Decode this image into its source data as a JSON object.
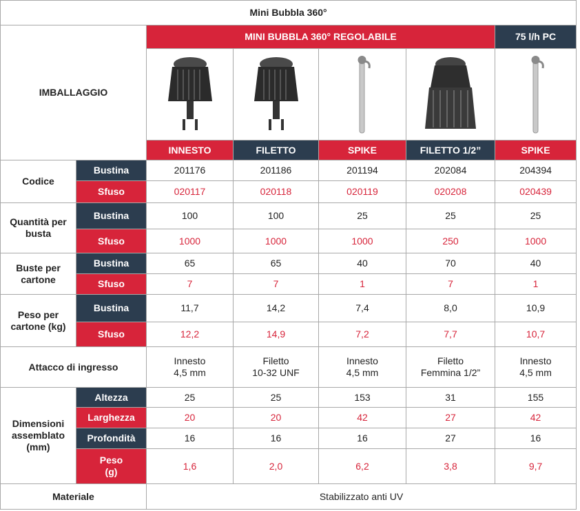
{
  "title": "Mini Bubbla 360°",
  "header": {
    "label": "IMBALLAGGIO",
    "groups": [
      {
        "label": "MINI BUBBLA 360° REGOLABILE",
        "products": [
          "INNESTO",
          "FILETTO",
          "SPIKE",
          "FILETTO 1/2”"
        ]
      },
      {
        "label": "75 l/h PC",
        "products": [
          "SPIKE"
        ]
      }
    ]
  },
  "rows": [
    {
      "label": "Codice",
      "sub": [
        {
          "label": "Bustina",
          "values": [
            "201176",
            "201186",
            "201194",
            "202084",
            "204394"
          ]
        },
        {
          "label": "Sfuso",
          "values": [
            "020117",
            "020118",
            "020119",
            "020208",
            "020439"
          ]
        }
      ]
    },
    {
      "label": "Quantità per busta",
      "sub": [
        {
          "label": "Bustina",
          "values": [
            "100",
            "100",
            "25",
            "25",
            "25"
          ]
        },
        {
          "label": "Sfuso",
          "values": [
            "1000",
            "1000",
            "1000",
            "250",
            "1000"
          ]
        }
      ]
    },
    {
      "label": "Buste per cartone",
      "sub": [
        {
          "label": "Bustina",
          "values": [
            "65",
            "65",
            "40",
            "70",
            "40"
          ]
        },
        {
          "label": "Sfuso",
          "values": [
            "7",
            "7",
            "1",
            "7",
            "1"
          ]
        }
      ]
    },
    {
      "label": "Peso per cartone (kg)",
      "sub": [
        {
          "label": "Bustina",
          "values": [
            "11,7",
            "14,2",
            "7,4",
            "8,0",
            "10,9"
          ]
        },
        {
          "label": "Sfuso",
          "values": [
            "12,2",
            "14,9",
            "7,2",
            "7,7",
            "10,7"
          ]
        }
      ]
    },
    {
      "label": "Attacco di ingresso",
      "values": [
        "Innesto\n4,5 mm",
        "Filetto\n10-32 UNF",
        "Innesto\n4,5 mm",
        "Filetto\nFemmina 1/2”",
        "Innesto\n4,5 mm"
      ]
    },
    {
      "label": "Dimensioni assemblato (mm)",
      "sub": [
        {
          "label": "Altezza",
          "values": [
            "25",
            "25",
            "153",
            "31",
            "155"
          ]
        },
        {
          "label": "Larghezza",
          "values": [
            "20",
            "20",
            "42",
            "27",
            "42"
          ]
        },
        {
          "label": "Profondità",
          "values": [
            "16",
            "16",
            "16",
            "27",
            "16"
          ]
        },
        {
          "label": "Peso\n(g)",
          "values": [
            "1,6",
            "2,0",
            "6,2",
            "3,8",
            "9,7"
          ]
        }
      ]
    },
    {
      "label": "Materiale",
      "value": "Stabilizzato anti UV"
    }
  ]
}
